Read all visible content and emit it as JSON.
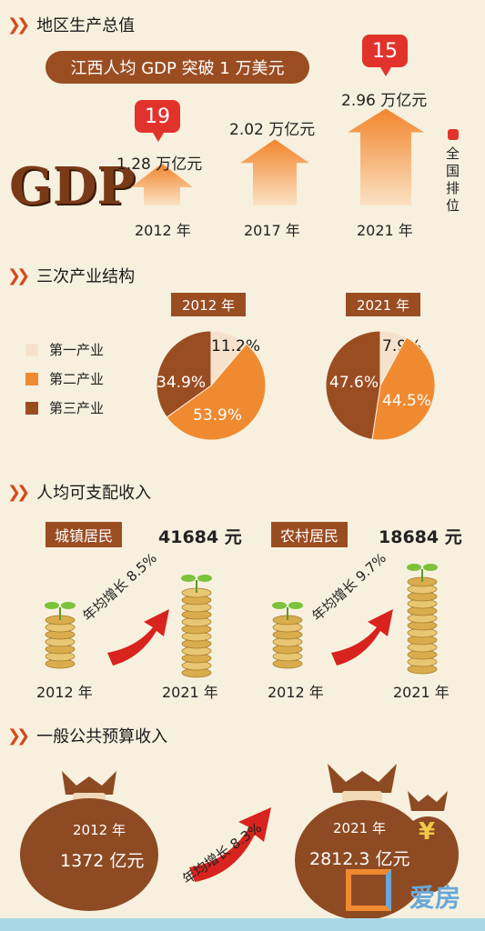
{
  "sections": {
    "gdp": "地区生产总值",
    "structure": "三次产业结构",
    "income": "人均可支配收入",
    "budget": "一般公共预算收入"
  },
  "gdp": {
    "banner": "江西人均 GDP 突破 1 万美元",
    "logo": "GDP",
    "rank_legend": "全国排位",
    "colors": {
      "arrow": "#f07a2a",
      "rank": "#e1332c"
    },
    "items": [
      {
        "year": "2012 年",
        "value": "1.28 万亿元",
        "rank": "19"
      },
      {
        "year": "2017 年",
        "value": "2.02 万亿元",
        "rank": ""
      },
      {
        "year": "2021 年",
        "value": "2.96 万亿元",
        "rank": "15"
      }
    ]
  },
  "structure": {
    "legend": [
      "第一产业",
      "第二产业",
      "第三产业"
    ],
    "colors": [
      "#f6e2cc",
      "#f08a30",
      "#9b4d22"
    ]
  },
  "income": {
    "urban": {
      "label": "城镇居民",
      "value": "41684 元",
      "growth": "年均增长 8.5%",
      "year_start": "2012 年",
      "year_end": "2021 年"
    },
    "rural": {
      "label": "农村居民",
      "value": "18684 元",
      "growth": "年均增长 9.7%",
      "year_start": "2012 年",
      "year_end": "2021 年"
    }
  },
  "budget": {
    "growth": "年均增长 8.3%",
    "bag2012": {
      "year": "2012 年",
      "value": "1372 亿元"
    },
    "bag2021": {
      "year": "2021 年",
      "value": "2812.3 亿元"
    },
    "small_bag_symbol": "¥"
  },
  "watermark": "爱房",
  "chart_data": [
    {
      "type": "bar",
      "categories": [
        "2012 年",
        "2017 年",
        "2021 年"
      ],
      "values": [
        1.28,
        2.02,
        2.96
      ],
      "title": "地区生产总值"
    },
    {
      "type": "pie",
      "title": "2012 年",
      "labels": [
        "第一产业",
        "第二产业",
        "第三产业"
      ],
      "values": [
        11.2,
        53.9,
        34.9
      ]
    },
    {
      "type": "pie",
      "title": "2021 年",
      "labels": [
        "第一产业",
        "第二产业",
        "第三产业"
      ],
      "values": [
        7.9,
        44.5,
        47.6
      ]
    }
  ]
}
